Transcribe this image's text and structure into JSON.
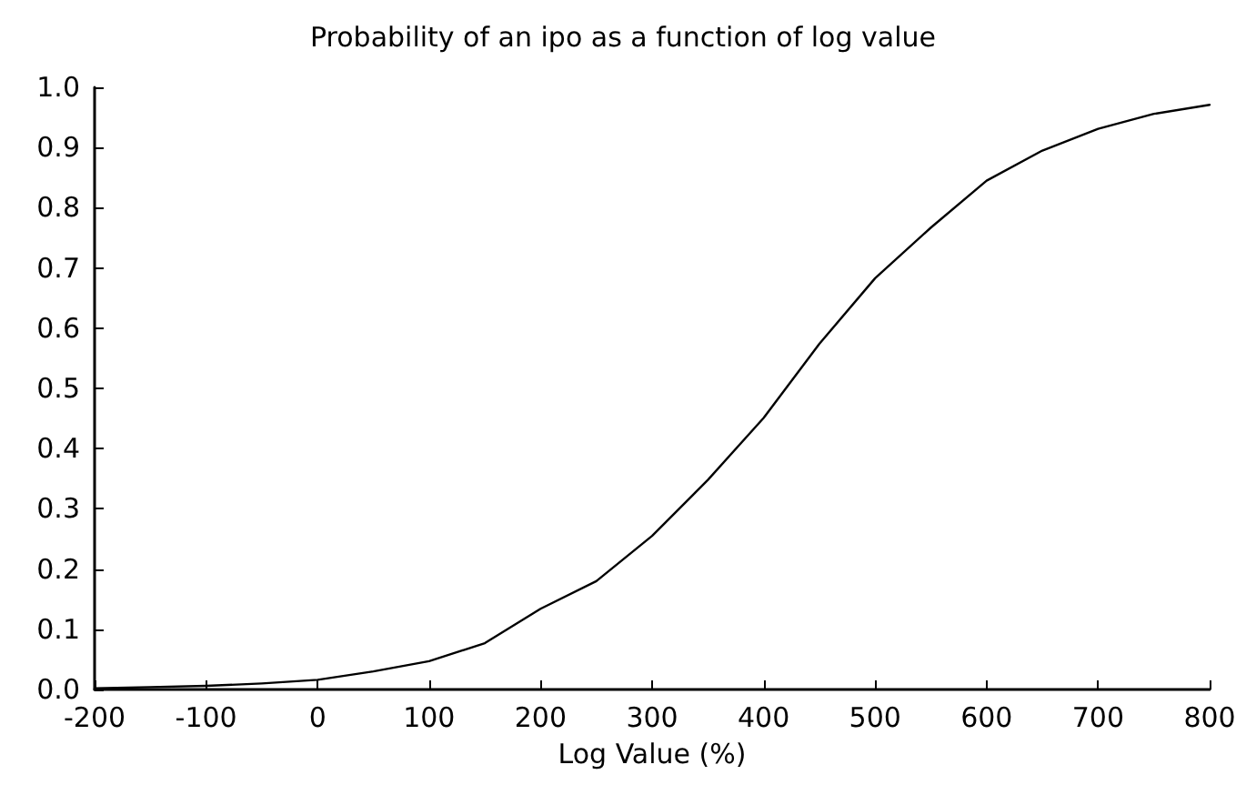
{
  "chart_data": {
    "type": "line",
    "title": "Probability of an ipo as a function of log value",
    "xlabel": "Log Value (%)",
    "x": [
      -200,
      -150,
      -100,
      -50,
      0,
      50,
      100,
      150,
      200,
      250,
      300,
      350,
      400,
      450,
      500,
      550,
      600,
      650,
      700,
      750,
      800
    ],
    "series": [
      {
        "color": "#000000",
        "values": [
          0.002,
          0.004,
          0.006,
          0.01,
          0.016,
          0.03,
          0.047,
          0.077,
          0.134,
          0.18,
          0.255,
          0.348,
          0.451,
          0.574,
          0.683,
          0.767,
          0.845,
          0.895,
          0.931,
          0.956,
          0.971
        ]
      }
    ],
    "xlim": [
      -200,
      800
    ],
    "xticks": [
      -200,
      -100,
      0,
      100,
      200,
      300,
      400,
      500,
      600,
      700,
      800
    ],
    "ylim": [
      0,
      1
    ],
    "yticks": [
      {
        "value": 0,
        "label": "0.0"
      },
      0.1,
      0.2,
      0.3,
      0.4,
      0.5,
      0.6,
      0.7,
      0.8,
      0.9,
      {
        "value": 1,
        "label": "1.0"
      }
    ],
    "grid": false,
    "marker": "none",
    "line_style": "solid"
  }
}
